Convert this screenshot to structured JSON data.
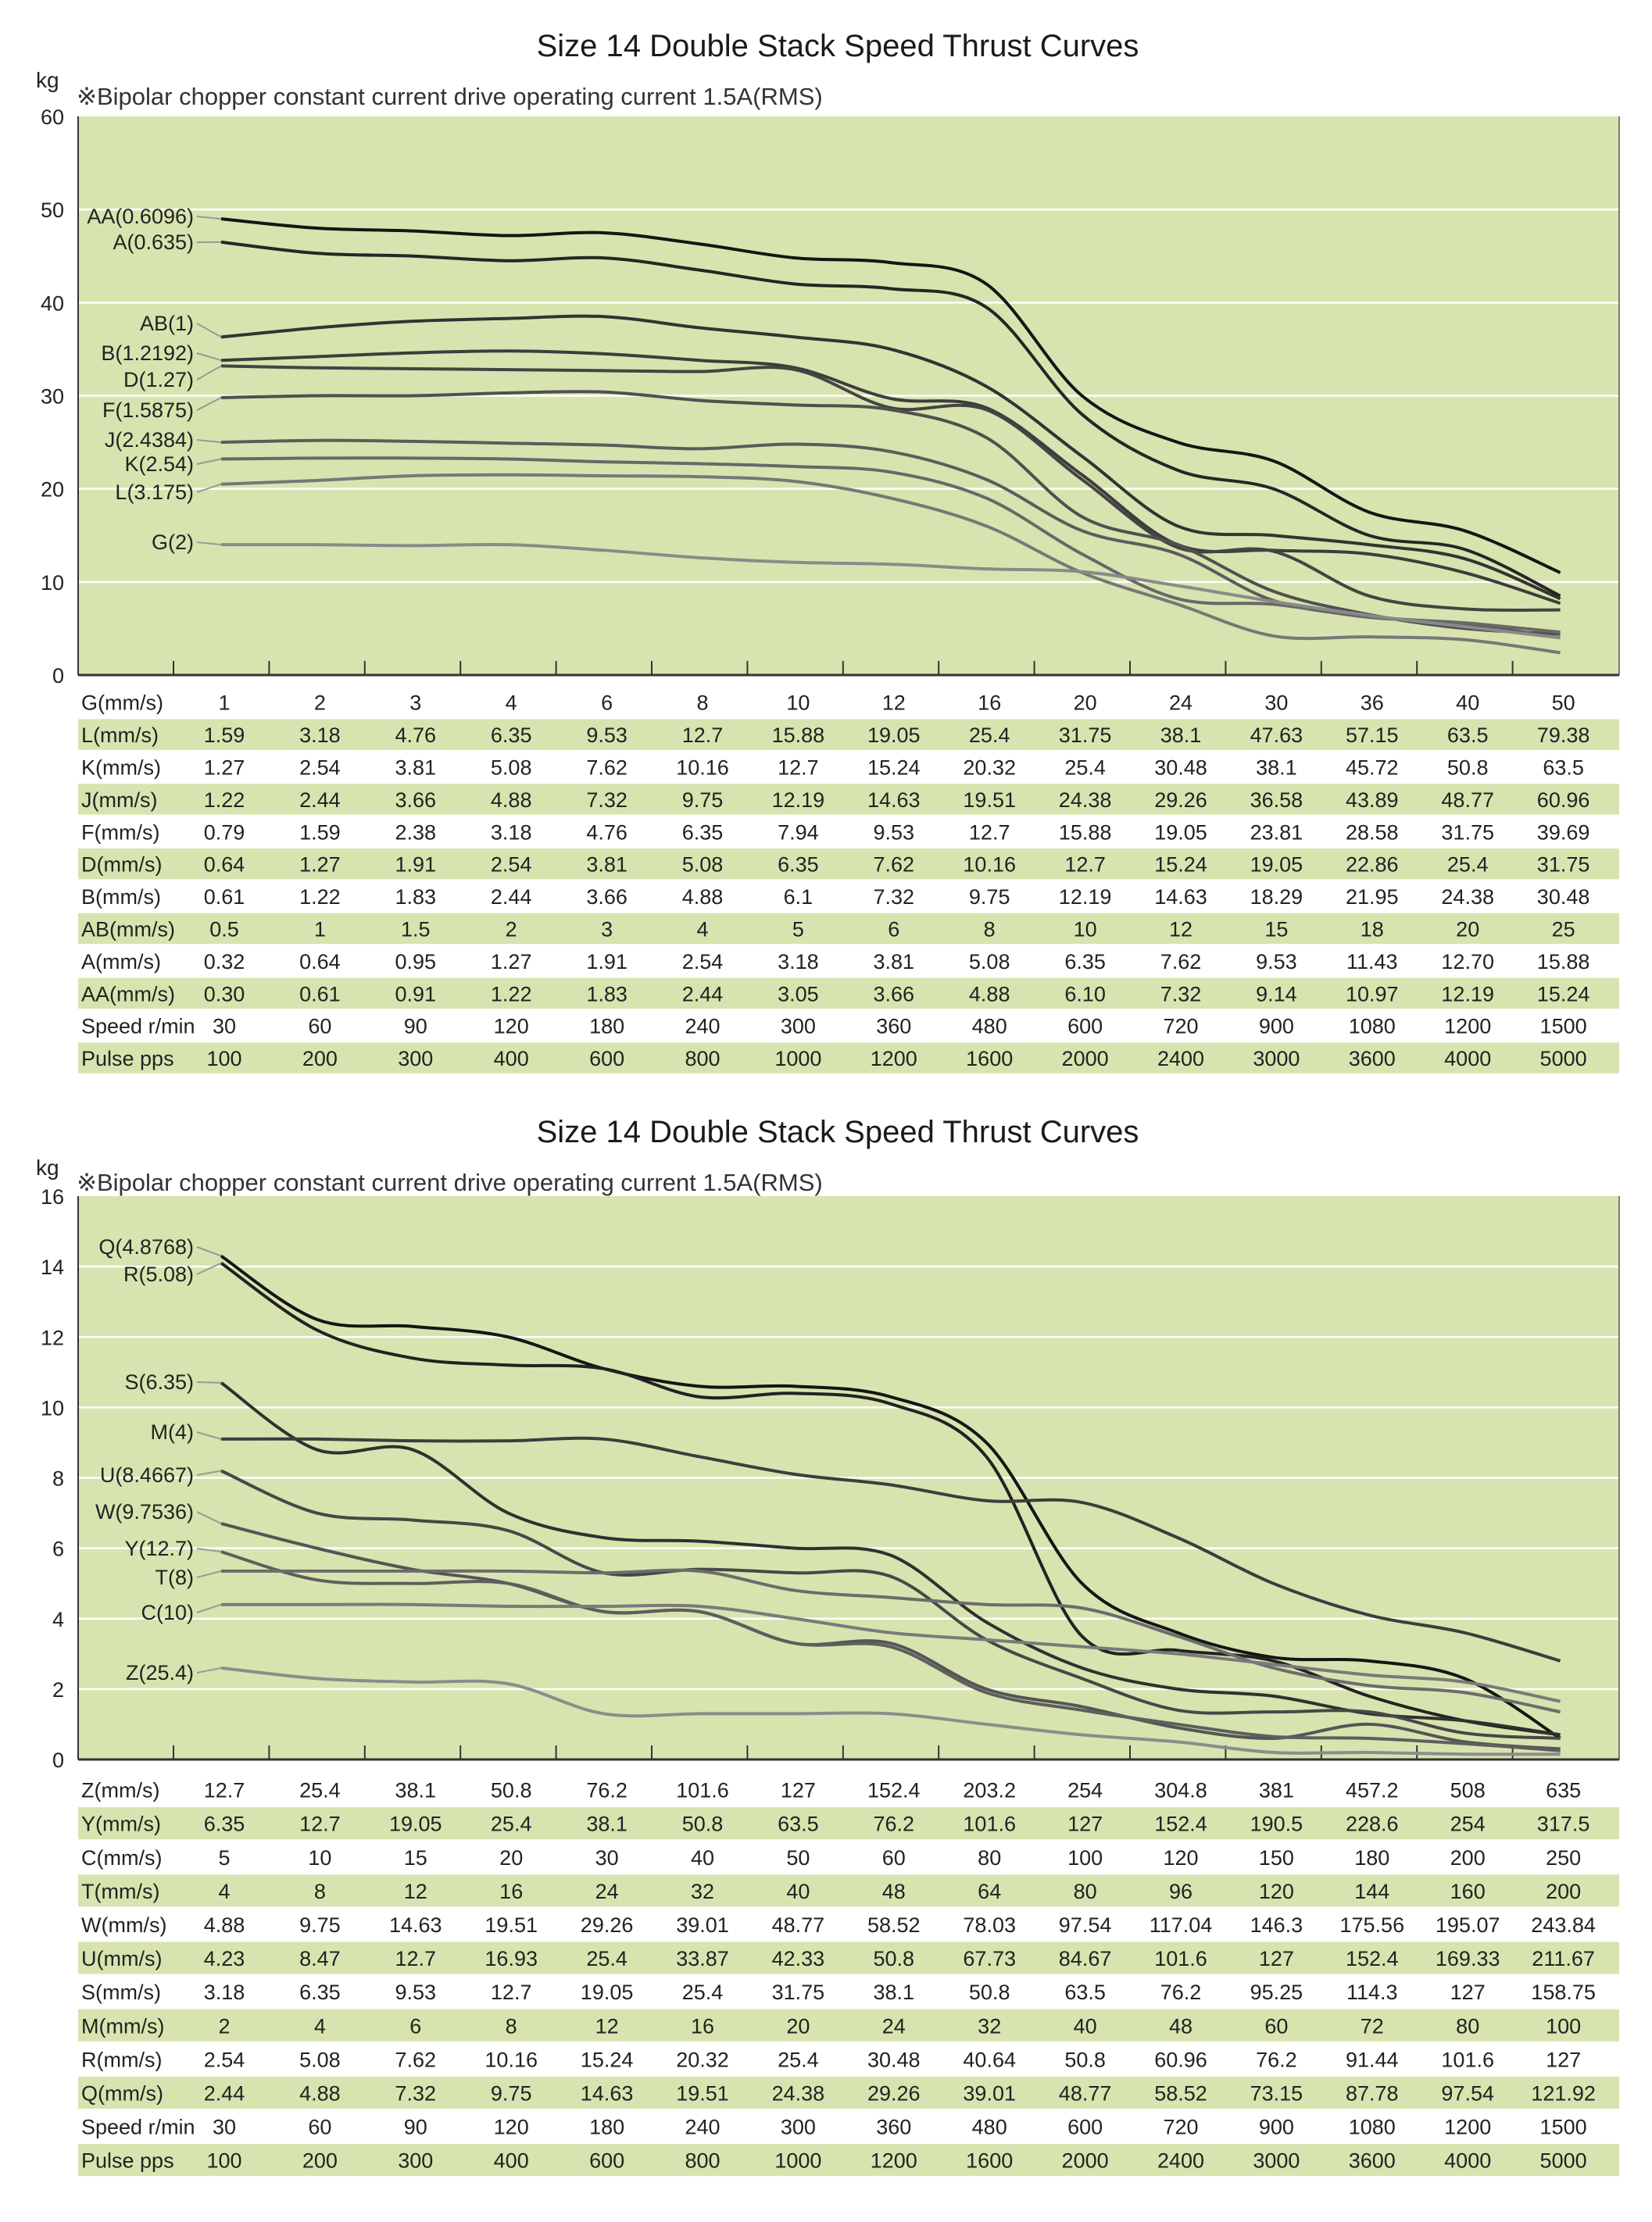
{
  "chart_data": [
    {
      "type": "line",
      "title": "Size 14 Double Stack Speed Thrust Curves",
      "note": "※Bipolar chopper constant current drive operating current 1.5A(RMS)",
      "ylabel": "kg",
      "ylim": [
        0,
        60
      ],
      "yticks": [
        0,
        10,
        20,
        30,
        40,
        50,
        60
      ],
      "grid": true,
      "plot_bg": "#d7e4af",
      "band_color": "#d7e4af",
      "series": [
        {
          "name": "AA(0.6096)",
          "color": "#151515",
          "values": [
            49,
            48,
            47.7,
            47.2,
            47.5,
            46.3,
            44.8,
            44.3,
            42,
            30,
            25,
            23,
            17.5,
            15.5,
            11
          ]
        },
        {
          "name": "A(0.635)",
          "color": "#262626",
          "values": [
            46.5,
            45.3,
            45,
            44.5,
            44.8,
            43.5,
            42,
            41.5,
            39.5,
            28,
            22,
            20,
            15,
            13.5,
            8.5
          ]
        },
        {
          "name": "AB(1)",
          "color": "#333333",
          "values": [
            36.3,
            37.3,
            38,
            38.3,
            38.5,
            37.3,
            36.3,
            35,
            31,
            23.5,
            16,
            15,
            14,
            12.5,
            8.2
          ]
        },
        {
          "name": "B(1.2192)",
          "color": "#3d3d3d",
          "values": [
            33.8,
            34.2,
            34.6,
            34.8,
            34.5,
            33.8,
            33,
            29.7,
            28.7,
            21.5,
            14,
            13.4,
            13,
            11,
            7.7
          ]
        },
        {
          "name": "D(1.27)",
          "color": "#444444",
          "values": [
            33.2,
            33,
            32.9,
            32.8,
            32.7,
            32.6,
            32.8,
            28.7,
            28.5,
            21,
            13.7,
            13.3,
            8.5,
            7.1,
            7
          ]
        },
        {
          "name": "F(1.5875)",
          "color": "#505050",
          "values": [
            29.8,
            30,
            30,
            30.3,
            30.4,
            29.5,
            29,
            28.5,
            25.5,
            17,
            14,
            9,
            6.5,
            5,
            4.4
          ]
        },
        {
          "name": "J(2.4384)",
          "color": "#5c5c5c",
          "values": [
            25,
            25.2,
            25.1,
            24.9,
            24.7,
            24.3,
            24.8,
            24,
            21,
            15.5,
            13,
            8,
            6.3,
            5.5,
            4
          ]
        },
        {
          "name": "K(2.54)",
          "color": "#686868",
          "values": [
            23.2,
            23.3,
            23.3,
            23.2,
            22.9,
            22.7,
            22.4,
            21.8,
            19,
            13,
            8.2,
            7.6,
            6.2,
            5.6,
            4.6
          ]
        },
        {
          "name": "L(3.175)",
          "color": "#777777",
          "values": [
            20.5,
            20.9,
            21.4,
            21.5,
            21.4,
            21.3,
            20.8,
            19,
            16,
            11,
            7.6,
            4.2,
            4.1,
            3.8,
            2.4
          ]
        },
        {
          "name": "G(2)",
          "color": "#8a8a8a",
          "values": [
            14,
            14,
            13.9,
            14,
            13.4,
            12.6,
            12.1,
            11.9,
            11.4,
            11.1,
            9.6,
            7.9,
            6.4,
            5.2,
            4
          ]
        }
      ],
      "table": [
        {
          "label": "G(mm/s)",
          "values": [
            "1",
            "2",
            "3",
            "4",
            "6",
            "8",
            "10",
            "12",
            "16",
            "20",
            "24",
            "30",
            "36",
            "40",
            "50"
          ]
        },
        {
          "label": "L(mm/s)",
          "values": [
            "1.59",
            "3.18",
            "4.76",
            "6.35",
            "9.53",
            "12.7",
            "15.88",
            "19.05",
            "25.4",
            "31.75",
            "38.1",
            "47.63",
            "57.15",
            "63.5",
            "79.38"
          ]
        },
        {
          "label": "K(mm/s)",
          "values": [
            "1.27",
            "2.54",
            "3.81",
            "5.08",
            "7.62",
            "10.16",
            "12.7",
            "15.24",
            "20.32",
            "25.4",
            "30.48",
            "38.1",
            "45.72",
            "50.8",
            "63.5"
          ]
        },
        {
          "label": "J(mm/s)",
          "values": [
            "1.22",
            "2.44",
            "3.66",
            "4.88",
            "7.32",
            "9.75",
            "12.19",
            "14.63",
            "19.51",
            "24.38",
            "29.26",
            "36.58",
            "43.89",
            "48.77",
            "60.96"
          ]
        },
        {
          "label": "F(mm/s)",
          "values": [
            "0.79",
            "1.59",
            "2.38",
            "3.18",
            "4.76",
            "6.35",
            "7.94",
            "9.53",
            "12.7",
            "15.88",
            "19.05",
            "23.81",
            "28.58",
            "31.75",
            "39.69"
          ]
        },
        {
          "label": "D(mm/s)",
          "values": [
            "0.64",
            "1.27",
            "1.91",
            "2.54",
            "3.81",
            "5.08",
            "6.35",
            "7.62",
            "10.16",
            "12.7",
            "15.24",
            "19.05",
            "22.86",
            "25.4",
            "31.75"
          ]
        },
        {
          "label": "B(mm/s)",
          "values": [
            "0.61",
            "1.22",
            "1.83",
            "2.44",
            "3.66",
            "4.88",
            "6.1",
            "7.32",
            "9.75",
            "12.19",
            "14.63",
            "18.29",
            "21.95",
            "24.38",
            "30.48"
          ]
        },
        {
          "label": "AB(mm/s)",
          "values": [
            "0.5",
            "1",
            "1.5",
            "2",
            "3",
            "4",
            "5",
            "6",
            "8",
            "10",
            "12",
            "15",
            "18",
            "20",
            "25"
          ]
        },
        {
          "label": "A(mm/s)",
          "values": [
            "0.32",
            "0.64",
            "0.95",
            "1.27",
            "1.91",
            "2.54",
            "3.18",
            "3.81",
            "5.08",
            "6.35",
            "7.62",
            "9.53",
            "11.43",
            "12.70",
            "15.88"
          ]
        },
        {
          "label": "AA(mm/s)",
          "values": [
            "0.30",
            "0.61",
            "0.91",
            "1.22",
            "1.83",
            "2.44",
            "3.05",
            "3.66",
            "4.88",
            "6.10",
            "7.32",
            "9.14",
            "10.97",
            "12.19",
            "15.24"
          ]
        },
        {
          "label": "Speed r/min",
          "values": [
            "30",
            "60",
            "90",
            "120",
            "180",
            "240",
            "300",
            "360",
            "480",
            "600",
            "720",
            "900",
            "1080",
            "1200",
            "1500"
          ]
        },
        {
          "label": "Pulse pps",
          "values": [
            "100",
            "200",
            "300",
            "400",
            "600",
            "800",
            "1000",
            "1200",
            "1600",
            "2000",
            "2400",
            "3000",
            "3600",
            "4000",
            "5000"
          ]
        }
      ]
    },
    {
      "type": "line",
      "title": "Size 14 Double Stack Speed Thrust Curves",
      "note": "※Bipolar chopper constant current drive operating current 1.5A(RMS)",
      "ylabel": "kg",
      "ylim": [
        0,
        16
      ],
      "yticks": [
        0,
        2,
        4,
        6,
        8,
        10,
        12,
        14,
        16
      ],
      "grid": true,
      "plot_bg": "#d7e4af",
      "band_color": "#d7e4af",
      "series": [
        {
          "name": "Q(4.8768)",
          "color": "#151515",
          "values": [
            14.3,
            12.5,
            12.3,
            12.0,
            11.1,
            10.6,
            10.6,
            10.3,
            9,
            5.0,
            3.6,
            2.9,
            2.8,
            2.3,
            0.6
          ]
        },
        {
          "name": "R(5.08)",
          "color": "#222222",
          "values": [
            14.1,
            12.2,
            11.4,
            11.2,
            11.1,
            10.3,
            10.4,
            10.1,
            8.6,
            3.5,
            3.1,
            2.8,
            1.8,
            1.1,
            0.7
          ]
        },
        {
          "name": "S(6.35)",
          "color": "#303030",
          "values": [
            10.7,
            8.8,
            8.8,
            7.0,
            6.3,
            6.2,
            6.0,
            5.8,
            3.9,
            2.6,
            2.0,
            1.8,
            1.3,
            1.1,
            0.7
          ]
        },
        {
          "name": "M(4)",
          "color": "#3d3d3d",
          "values": [
            9.1,
            9.1,
            9.05,
            9.05,
            9.1,
            8.6,
            8.1,
            7.8,
            7.35,
            7.3,
            6.3,
            5.0,
            4.1,
            3.6,
            2.8
          ]
        },
        {
          "name": "U(8.4667)",
          "color": "#474747",
          "values": [
            8.2,
            7.0,
            6.8,
            6.5,
            5.3,
            5.4,
            5.3,
            5.2,
            3.4,
            2.3,
            1.4,
            1.35,
            1.35,
            0.75,
            0.6
          ]
        },
        {
          "name": "W(9.7536)",
          "color": "#555555",
          "values": [
            6.7,
            6.0,
            5.4,
            5.0,
            4.2,
            4.2,
            3.3,
            3.3,
            2.0,
            1.5,
            0.9,
            0.6,
            1.0,
            0.5,
            0.3
          ]
        },
        {
          "name": "Y(12.7)",
          "color": "#5e5e5e",
          "values": [
            5.9,
            5.1,
            5.0,
            5.0,
            4.2,
            4.2,
            3.3,
            3.2,
            1.9,
            1.4,
            1.0,
            0.65,
            0.6,
            0.45,
            0.25
          ]
        },
        {
          "name": "T(8)",
          "color": "#6c6c6c",
          "values": [
            5.35,
            5.35,
            5.35,
            5.35,
            5.3,
            5.35,
            4.8,
            4.6,
            4.4,
            4.3,
            3.5,
            2.6,
            2.1,
            1.9,
            1.35
          ]
        },
        {
          "name": "C(10)",
          "color": "#7a7a7a",
          "values": [
            4.4,
            4.4,
            4.4,
            4.35,
            4.35,
            4.35,
            4.0,
            3.6,
            3.4,
            3.2,
            3.0,
            2.7,
            2.4,
            2.2,
            1.65
          ]
        },
        {
          "name": "Z(25.4)",
          "color": "#8c8c8c",
          "values": [
            2.6,
            2.3,
            2.2,
            2.15,
            1.3,
            1.3,
            1.3,
            1.3,
            1.0,
            0.7,
            0.5,
            0.2,
            0.2,
            0.15,
            0.15
          ]
        }
      ],
      "table": [
        {
          "label": "Z(mm/s)",
          "values": [
            "12.7",
            "25.4",
            "38.1",
            "50.8",
            "76.2",
            "101.6",
            "127",
            "152.4",
            "203.2",
            "254",
            "304.8",
            "381",
            "457.2",
            "508",
            "635"
          ]
        },
        {
          "label": "Y(mm/s)",
          "values": [
            "6.35",
            "12.7",
            "19.05",
            "25.4",
            "38.1",
            "50.8",
            "63.5",
            "76.2",
            "101.6",
            "127",
            "152.4",
            "190.5",
            "228.6",
            "254",
            "317.5"
          ]
        },
        {
          "label": "C(mm/s)",
          "values": [
            "5",
            "10",
            "15",
            "20",
            "30",
            "40",
            "50",
            "60",
            "80",
            "100",
            "120",
            "150",
            "180",
            "200",
            "250"
          ]
        },
        {
          "label": "T(mm/s)",
          "values": [
            "4",
            "8",
            "12",
            "16",
            "24",
            "32",
            "40",
            "48",
            "64",
            "80",
            "96",
            "120",
            "144",
            "160",
            "200"
          ]
        },
        {
          "label": "W(mm/s)",
          "values": [
            "4.88",
            "9.75",
            "14.63",
            "19.51",
            "29.26",
            "39.01",
            "48.77",
            "58.52",
            "78.03",
            "97.54",
            "117.04",
            "146.3",
            "175.56",
            "195.07",
            "243.84"
          ]
        },
        {
          "label": "U(mm/s)",
          "values": [
            "4.23",
            "8.47",
            "12.7",
            "16.93",
            "25.4",
            "33.87",
            "42.33",
            "50.8",
            "67.73",
            "84.67",
            "101.6",
            "127",
            "152.4",
            "169.33",
            "211.67"
          ]
        },
        {
          "label": "S(mm/s)",
          "values": [
            "3.18",
            "6.35",
            "9.53",
            "12.7",
            "19.05",
            "25.4",
            "31.75",
            "38.1",
            "50.8",
            "63.5",
            "76.2",
            "95.25",
            "114.3",
            "127",
            "158.75"
          ]
        },
        {
          "label": "M(mm/s)",
          "values": [
            "2",
            "4",
            "6",
            "8",
            "12",
            "16",
            "20",
            "24",
            "32",
            "40",
            "48",
            "60",
            "72",
            "80",
            "100"
          ]
        },
        {
          "label": "R(mm/s)",
          "values": [
            "2.54",
            "5.08",
            "7.62",
            "10.16",
            "15.24",
            "20.32",
            "25.4",
            "30.48",
            "40.64",
            "50.8",
            "60.96",
            "76.2",
            "91.44",
            "101.6",
            "127"
          ]
        },
        {
          "label": "Q(mm/s)",
          "values": [
            "2.44",
            "4.88",
            "7.32",
            "9.75",
            "14.63",
            "19.51",
            "24.38",
            "29.26",
            "39.01",
            "48.77",
            "58.52",
            "73.15",
            "87.78",
            "97.54",
            "121.92"
          ]
        },
        {
          "label": "Speed r/min",
          "values": [
            "30",
            "60",
            "90",
            "120",
            "180",
            "240",
            "300",
            "360",
            "480",
            "600",
            "720",
            "900",
            "1080",
            "1200",
            "1500"
          ]
        },
        {
          "label": "Pulse pps",
          "values": [
            "100",
            "200",
            "300",
            "400",
            "600",
            "800",
            "1000",
            "1200",
            "1600",
            "2000",
            "2400",
            "3000",
            "3600",
            "4000",
            "5000"
          ]
        }
      ]
    }
  ]
}
